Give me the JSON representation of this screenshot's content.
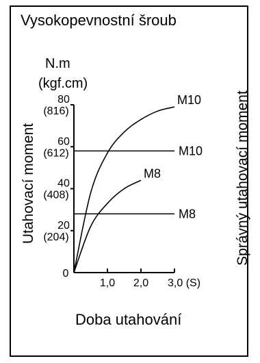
{
  "title": "Vysokopevnostní šroub",
  "y_axis": {
    "title": "Utahovací moment",
    "unit_1": "N.m",
    "unit_2": "(kgf.cm)"
  },
  "x_axis": {
    "title": "Doba utahování"
  },
  "right_label": "Správný utahovací moment",
  "chart_data": {
    "type": "line",
    "title": "Vysokopevnostní šroub",
    "xlabel": "Doba utahování",
    "ylabel": "Utahovací moment",
    "xlim": [
      0,
      3.0
    ],
    "ylim": [
      0,
      80
    ],
    "x_ticks": [
      {
        "value": 1.0,
        "label": "1,0"
      },
      {
        "value": 2.0,
        "label": "2,0"
      },
      {
        "value": 3.0,
        "label": "3,0 (S)"
      }
    ],
    "y_ticks": [
      {
        "value": 0,
        "label": "0",
        "sublabel": ""
      },
      {
        "value": 20,
        "label": "20",
        "sublabel": "(204)"
      },
      {
        "value": 40,
        "label": "40",
        "sublabel": "(408)"
      },
      {
        "value": 60,
        "label": "60",
        "sublabel": "(612)"
      },
      {
        "value": 80,
        "label": "80",
        "sublabel": "(816)"
      }
    ],
    "series": [
      {
        "name": "M10",
        "kind": "tightening curve",
        "x": [
          0,
          0.5,
          1.0,
          1.5,
          2.0,
          2.5,
          3.0
        ],
        "y": [
          0,
          38,
          57,
          67,
          73,
          77,
          79
        ]
      },
      {
        "name": "M8",
        "kind": "tightening curve",
        "x": [
          0,
          0.5,
          1.0,
          1.5,
          2.0
        ],
        "y": [
          0,
          22,
          33,
          40,
          44
        ]
      },
      {
        "name": "M10",
        "kind": "correct torque",
        "x": [
          0,
          3.0
        ],
        "y": [
          58,
          58
        ]
      },
      {
        "name": "M8",
        "kind": "correct torque",
        "x": [
          0,
          3.0
        ],
        "y": [
          28,
          28
        ]
      }
    ]
  }
}
